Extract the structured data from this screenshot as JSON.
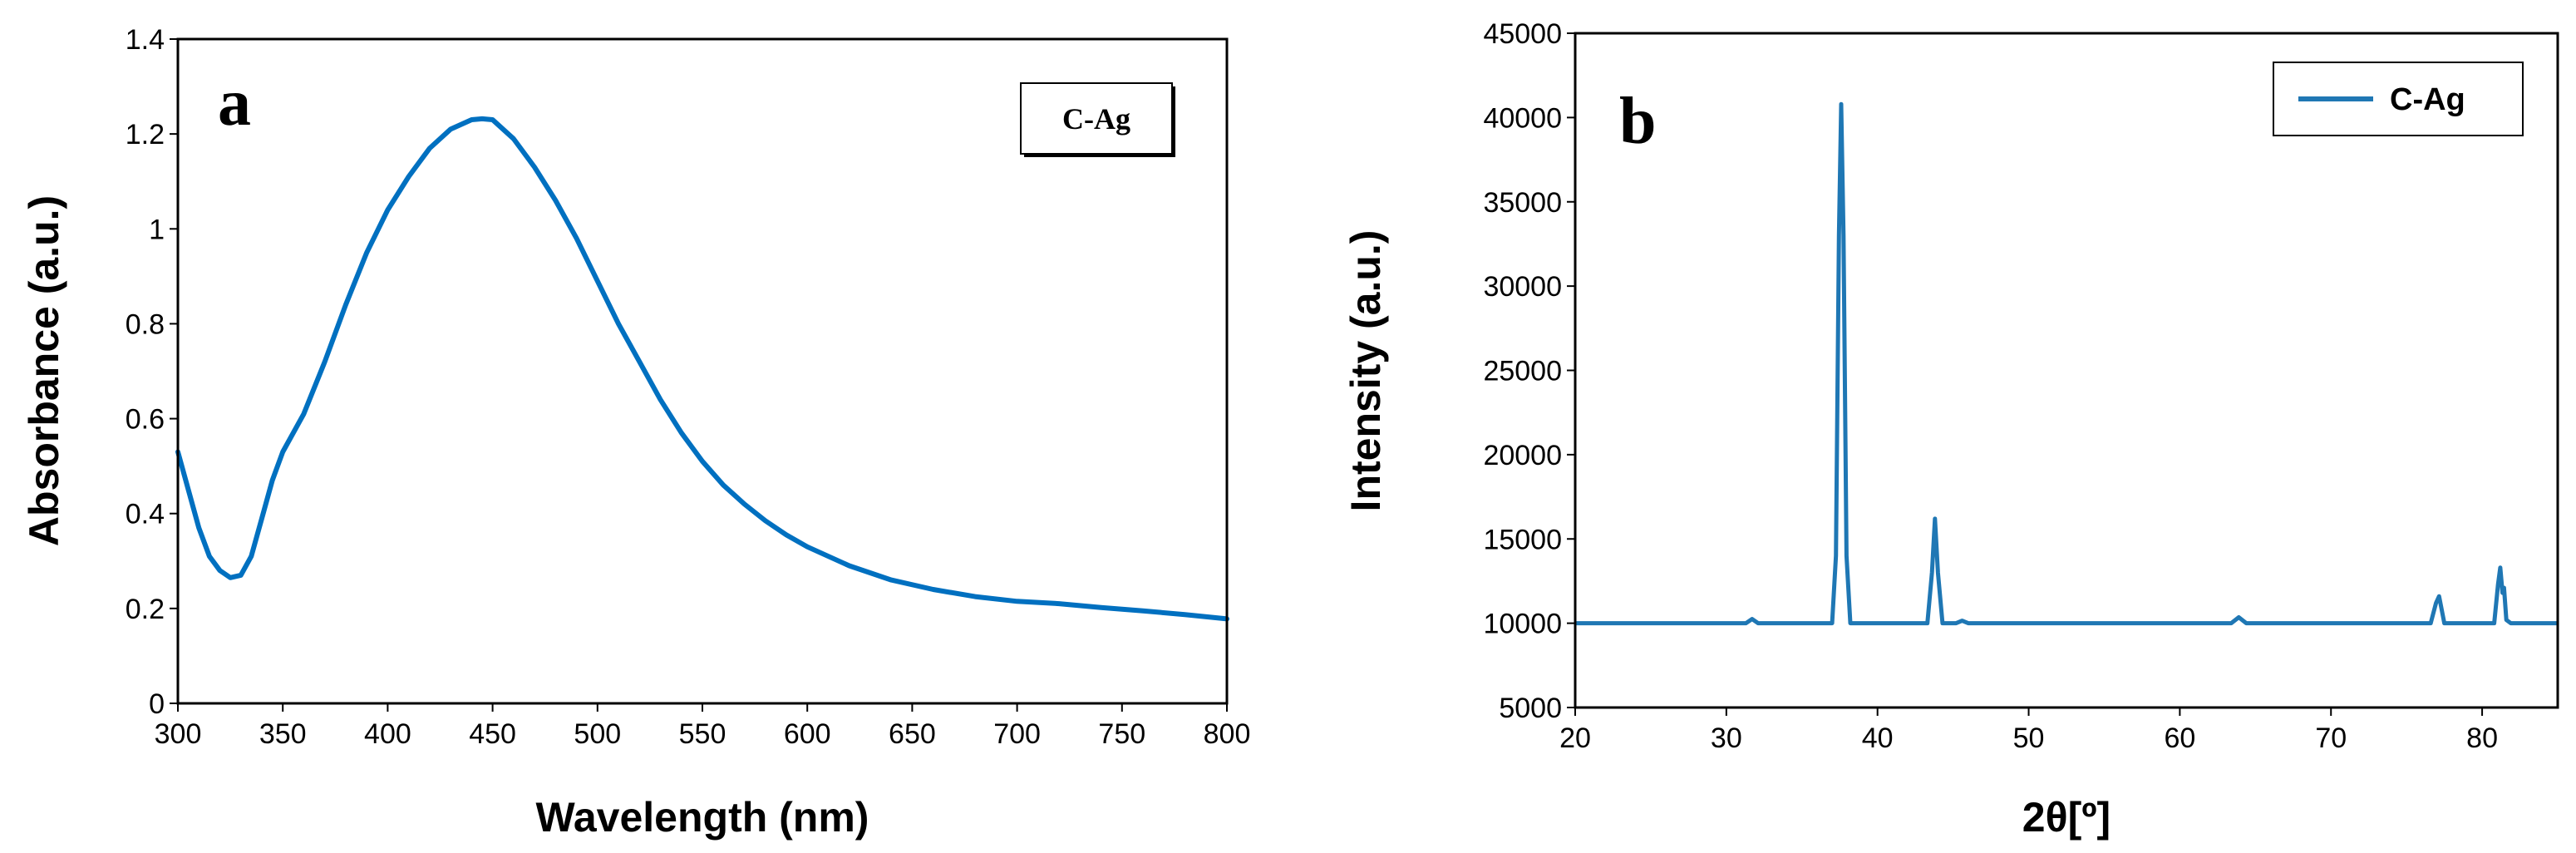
{
  "chart_data": [
    {
      "type": "line",
      "panel_label": "a",
      "xlabel": "Wavelength (nm)",
      "ylabel": "Absorbance (a.u.)",
      "xlim": [
        300,
        800
      ],
      "ylim": [
        0,
        1.4
      ],
      "xticks": [
        "300",
        "350",
        "400",
        "450",
        "500",
        "550",
        "600",
        "650",
        "700",
        "750",
        "800"
      ],
      "yticks": [
        "0",
        "0.2",
        "0.4",
        "0.6",
        "0.8",
        "1",
        "1.2",
        "1.4"
      ],
      "legend": "C-Ag",
      "legend_position": "top-right",
      "color": "#0070C0",
      "series": [
        {
          "name": "C-Ag",
          "x": [
            300,
            305,
            310,
            315,
            320,
            325,
            330,
            335,
            340,
            345,
            350,
            360,
            370,
            380,
            390,
            400,
            410,
            420,
            430,
            440,
            445,
            450,
            460,
            470,
            480,
            490,
            500,
            510,
            520,
            530,
            540,
            550,
            560,
            570,
            580,
            590,
            600,
            620,
            640,
            660,
            680,
            700,
            720,
            740,
            760,
            780,
            800
          ],
          "y": [
            0.53,
            0.45,
            0.37,
            0.31,
            0.28,
            0.265,
            0.27,
            0.31,
            0.39,
            0.47,
            0.53,
            0.61,
            0.72,
            0.84,
            0.95,
            1.04,
            1.11,
            1.17,
            1.21,
            1.23,
            1.232,
            1.23,
            1.19,
            1.13,
            1.06,
            0.98,
            0.89,
            0.8,
            0.72,
            0.64,
            0.57,
            0.51,
            0.46,
            0.42,
            0.385,
            0.355,
            0.33,
            0.29,
            0.26,
            0.24,
            0.225,
            0.215,
            0.21,
            0.202,
            0.195,
            0.187,
            0.178
          ]
        }
      ]
    },
    {
      "type": "line",
      "panel_label": "b",
      "xlabel": "2θ[º]",
      "ylabel": "Intensity (a.u.)",
      "xlim": [
        20,
        85
      ],
      "ylim": [
        5000,
        45000
      ],
      "xticks": [
        "20",
        "30",
        "40",
        "50",
        "60",
        "70",
        "80"
      ],
      "yticks": [
        "5000",
        "10000",
        "15000",
        "20000",
        "25000",
        "30000",
        "35000",
        "40000",
        "45000"
      ],
      "legend": "C-Ag",
      "legend_position": "top-right",
      "color": "#1F77B4",
      "series": [
        {
          "name": "C-Ag",
          "x": [
            20,
            31.3,
            31.7,
            32.1,
            37.0,
            37.25,
            37.45,
            37.6,
            37.75,
            37.95,
            38.2,
            43.3,
            43.6,
            43.8,
            44.0,
            44.3,
            45.2,
            45.6,
            46.0,
            63.4,
            63.9,
            64.4,
            76.6,
            76.95,
            77.15,
            77.5,
            80.8,
            81.05,
            81.2,
            81.35,
            81.45,
            81.6,
            81.9,
            85
          ],
          "y": [
            10000,
            10000,
            10250,
            10000,
            10000,
            14000,
            33000,
            40800,
            33000,
            14000,
            10000,
            10000,
            13000,
            16200,
            13000,
            10000,
            10000,
            10150,
            10000,
            10000,
            10350,
            10000,
            10000,
            11200,
            11600,
            10000,
            10000,
            12300,
            13300,
            11800,
            12100,
            10200,
            10000,
            10000
          ]
        }
      ]
    }
  ]
}
